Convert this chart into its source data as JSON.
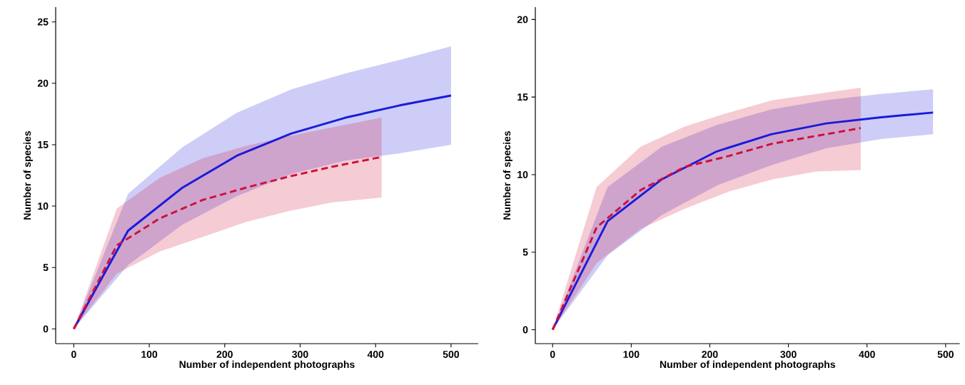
{
  "chart_data": [
    {
      "type": "line",
      "xlabel": "Number of independent photographs",
      "ylabel": "Number of species",
      "xlim": [
        -24,
        536
      ],
      "ylim": [
        -1.2,
        26.2
      ],
      "xticks": [
        0,
        100,
        200,
        300,
        400,
        500
      ],
      "yticks": [
        0,
        5,
        10,
        15,
        20,
        25
      ],
      "series": [
        {
          "color": "#1a1adb",
          "line_style": "solid",
          "x": [
            0,
            72,
            144,
            216,
            288,
            360,
            432,
            500
          ],
          "values": [
            0,
            8,
            11.5,
            14.1,
            15.9,
            17.2,
            18.2,
            19
          ],
          "lower": [
            0,
            5.2,
            8.5,
            10.8,
            12.6,
            13.7,
            14.3,
            15
          ],
          "upper": [
            0,
            11,
            14.8,
            17.6,
            19.5,
            20.8,
            21.9,
            23
          ]
        },
        {
          "color": "#d0103a",
          "line_style": "dashed",
          "x": [
            0,
            57,
            114,
            171,
            228,
            285,
            342,
            408
          ],
          "values": [
            0,
            6.8,
            9,
            10.5,
            11.5,
            12.4,
            13.2,
            14
          ],
          "lower": [
            0,
            4.5,
            6.3,
            7.5,
            8.7,
            9.6,
            10.3,
            10.7
          ],
          "upper": [
            0,
            9.8,
            12.3,
            13.9,
            14.9,
            15.7,
            16.4,
            17.2
          ]
        }
      ]
    },
    {
      "type": "line",
      "xlabel": "Number of independent photographs",
      "ylabel": "Number of species",
      "xlim": [
        -22,
        518
      ],
      "ylim": [
        -0.9,
        20.8
      ],
      "xticks": [
        0,
        100,
        200,
        300,
        400,
        500
      ],
      "yticks": [
        0,
        5,
        10,
        15,
        20
      ],
      "series": [
        {
          "color": "#1a1adb",
          "line_style": "solid",
          "x": [
            0,
            70,
            139,
            209,
            278,
            348,
            418,
            484
          ],
          "values": [
            0,
            7,
            9.7,
            11.5,
            12.6,
            13.3,
            13.7,
            14
          ],
          "lower": [
            0,
            4.8,
            7.4,
            9.3,
            10.6,
            11.7,
            12.3,
            12.6
          ],
          "upper": [
            0,
            9.2,
            11.8,
            13.2,
            14.2,
            14.8,
            15.2,
            15.5
          ]
        },
        {
          "color": "#d0103a",
          "line_style": "dashed",
          "x": [
            0,
            56,
            112,
            168,
            224,
            280,
            336,
            392
          ],
          "values": [
            0,
            6.6,
            9,
            10.5,
            11.2,
            12,
            12.5,
            13
          ],
          "lower": [
            0,
            4.3,
            6.5,
            7.8,
            8.9,
            9.7,
            10.2,
            10.3
          ],
          "upper": [
            0,
            9.2,
            11.8,
            13.1,
            14,
            14.8,
            15.2,
            15.6
          ]
        }
      ]
    }
  ]
}
